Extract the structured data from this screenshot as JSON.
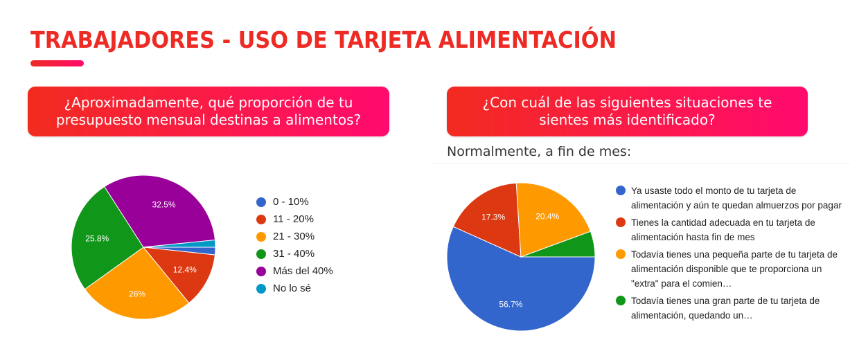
{
  "page": {
    "title": "TRABAJADORES - USO DE TARJETA ALIMENTACIÓN",
    "accent_color": "#ee2a24",
    "accent_gradient_end": "#ff0a6e"
  },
  "questions": [
    {
      "label": "¿Aproximadamente, qué proporción de tu presupuesto mensual destinas a alimentos?",
      "line1": "¿Aproximadamente, qué proporción de tu",
      "line2": "presupuesto mensual destinas a alimentos?"
    },
    {
      "label": "¿Con cuál de las siguientes situaciones te sientes más identificado?",
      "line1": "¿Con cuál de las siguientes situaciones te",
      "line2": "sientes más identificado?",
      "subtitle": "Normalmente, a fin de mes:"
    }
  ],
  "chart_data": [
    {
      "type": "pie",
      "title": "¿Aproximadamente, qué proporción de tu presupuesto mensual destinas a alimentos?",
      "legend_position": "right",
      "categories": [
        "0 - 10%",
        "11 - 20%",
        "21 - 30%",
        "31 - 40%",
        "Más del 40%",
        "No lo sé"
      ],
      "values": [
        1.7,
        12.4,
        26,
        25.8,
        32.5,
        1.6
      ],
      "data_labels": [
        "",
        "12.4%",
        "26%",
        "25.8%",
        "32.5%",
        ""
      ],
      "colors": [
        "#3366cc",
        "#dc3912",
        "#ff9900",
        "#109618",
        "#990099",
        "#0099c6"
      ]
    },
    {
      "type": "pie",
      "title": "¿Con cuál de las siguientes situaciones te sientes más identificado?",
      "subtitle": "Normalmente, a fin de mes:",
      "legend_position": "right",
      "categories": [
        "Ya usaste todo el monto de tu tarjeta de alimentación y aún te quedan almuerzos por pagar",
        "Tienes la cantidad adecuada en tu tarjeta de alimentación hasta fin de mes",
        "Todavía tienes una pequeña parte de tu tarjeta de alimentación disponible que te proporciona un \"extra\" para el comien…",
        "Todavía tienes una gran parte de tu tarjeta de alimentación, quedando un…"
      ],
      "values": [
        56.7,
        17.3,
        20.4,
        5.6
      ],
      "data_labels": [
        "56.7%",
        "17.3%",
        "20.4%",
        ""
      ],
      "colors": [
        "#3366cc",
        "#dc3912",
        "#ff9900",
        "#109618"
      ]
    }
  ],
  "legend1": {
    "items": [
      {
        "label": "0 - 10%",
        "color": "#3366cc"
      },
      {
        "label": "11 - 20%",
        "color": "#dc3912"
      },
      {
        "label": "21 - 30%",
        "color": "#ff9900"
      },
      {
        "label": "31 - 40%",
        "color": "#109618"
      },
      {
        "label": "Más del 40%",
        "color": "#990099"
      },
      {
        "label": "No lo sé",
        "color": "#0099c6"
      }
    ]
  },
  "legend2": {
    "items": [
      {
        "label": "Ya usaste todo el monto de tu tarjeta de alimentación y aún te quedan almuerzos por pagar",
        "color": "#3366cc"
      },
      {
        "label": "Tienes la cantidad adecuada en tu tarjeta de alimentación hasta fin de mes",
        "color": "#dc3912"
      },
      {
        "label": "Todavía tienes una pequeña parte de tu tarjeta de alimentación disponible que te proporciona un \"extra\" para el comien…",
        "color": "#ff9900"
      },
      {
        "label": "Todavía tienes una gran parte de tu tarjeta de alimentación, quedando un…",
        "color": "#109618"
      }
    ]
  }
}
